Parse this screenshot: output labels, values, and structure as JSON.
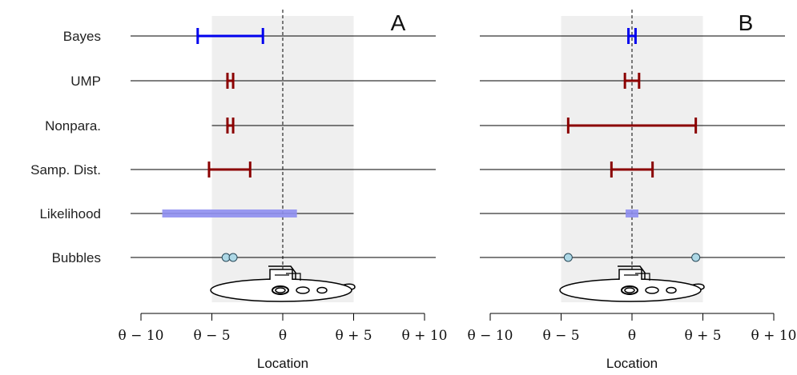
{
  "chart_data": [
    {
      "type": "interval",
      "title": "A",
      "xlabel": "Location",
      "xlim": [
        -10,
        10
      ],
      "shaded_region": [
        -5,
        5
      ],
      "reference_line": 0,
      "xticks": [
        -10,
        -5,
        0,
        5,
        10
      ],
      "xtick_labels": [
        "θ − 10",
        "θ − 5",
        "θ",
        "θ + 5",
        "θ + 10"
      ],
      "rows": [
        {
          "label": "Bayes",
          "kind": "interval",
          "color": "#0000ee",
          "low": -6.0,
          "high": -1.4,
          "line_start": -10,
          "line_end": 10
        },
        {
          "label": "UMP",
          "kind": "interval",
          "color": "#8b0000",
          "low": -3.9,
          "high": -3.5,
          "line_start": -10,
          "line_end": 10
        },
        {
          "label": "Nonpara.",
          "kind": "interval",
          "color": "#8b0000",
          "low": -3.9,
          "high": -3.5,
          "line_start": -5,
          "line_end": 5
        },
        {
          "label": "Samp. Dist.",
          "kind": "interval",
          "color": "#8b0000",
          "low": -5.2,
          "high": -2.3,
          "line_start": -10,
          "line_end": 10
        },
        {
          "label": "Likelihood",
          "kind": "band",
          "color": "#8e8ef0",
          "low": -8.5,
          "high": 1.0,
          "line_start": -10,
          "line_end": 5
        },
        {
          "label": "Bubbles",
          "kind": "points",
          "color": "#add8e6",
          "points": [
            -4.0,
            -3.5
          ],
          "line_start": -10,
          "line_end": 10
        }
      ],
      "submarine_center": 0
    },
    {
      "type": "interval",
      "title": "B",
      "xlabel": "Location",
      "xlim": [
        -10,
        10
      ],
      "shaded_region": [
        -5,
        5
      ],
      "reference_line": 0,
      "xticks": [
        -10,
        -5,
        0,
        5,
        10
      ],
      "xtick_labels": [
        "θ − 10",
        "θ − 5",
        "θ",
        "θ + 5",
        "θ + 10"
      ],
      "rows": [
        {
          "label": "Bayes",
          "kind": "interval",
          "color": "#0000ee",
          "low": -0.25,
          "high": 0.25,
          "line_start": -10,
          "line_end": 10
        },
        {
          "label": "UMP",
          "kind": "interval",
          "color": "#8b0000",
          "low": -0.5,
          "high": 0.5,
          "line_start": -10,
          "line_end": 10
        },
        {
          "label": "Nonpara.",
          "kind": "interval",
          "color": "#8b0000",
          "low": -4.5,
          "high": 4.5,
          "line_start": -10,
          "line_end": 10
        },
        {
          "label": "Samp. Dist.",
          "kind": "interval",
          "color": "#8b0000",
          "low": -1.45,
          "high": 1.45,
          "line_start": -10,
          "line_end": 10
        },
        {
          "label": "Likelihood",
          "kind": "band",
          "color": "#8e8ef0",
          "low": -0.45,
          "high": 0.45,
          "line_start": -10,
          "line_end": 10
        },
        {
          "label": "Bubbles",
          "kind": "points",
          "color": "#add8e6",
          "points": [
            -4.5,
            4.5
          ],
          "line_start": -10,
          "line_end": 10
        }
      ],
      "submarine_center": 0
    }
  ]
}
